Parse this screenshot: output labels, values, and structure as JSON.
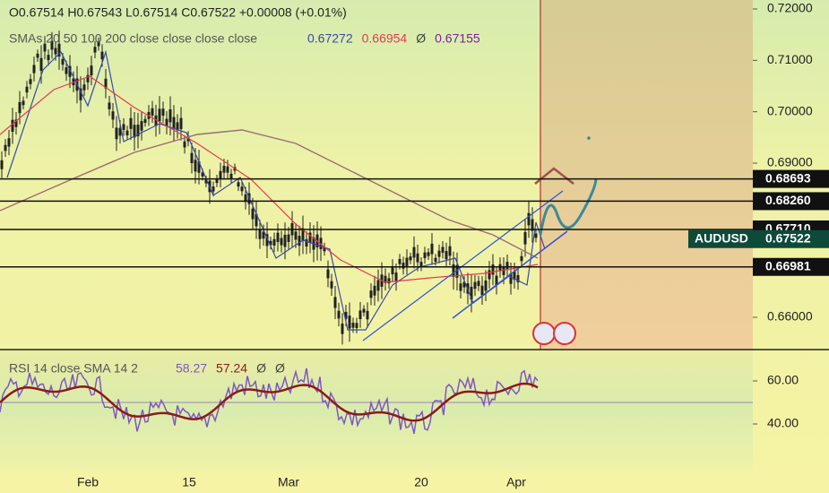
{
  "header": {
    "ohlc": "O0.67514 H0.67543 L0.67514 C0.67522 +0.00008 (+0.01%)",
    "sma_label": "SMAs 20 50 100 200 close close close close",
    "sma_values": [
      {
        "text": "0.67272",
        "color": "#3949ab"
      },
      {
        "text": "0.66954",
        "color": "#e53950"
      },
      {
        "text": "Ø",
        "color": "#444"
      },
      {
        "text": "0.67155",
        "color": "#7b1fa2"
      }
    ]
  },
  "price_axis": {
    "ticks": [
      {
        "value": 0.72,
        "label": "0.72000"
      },
      {
        "value": 0.71,
        "label": "0.71000"
      },
      {
        "value": 0.7,
        "label": "0.70000"
      },
      {
        "value": 0.69,
        "label": "0.69000"
      },
      {
        "value": 0.66,
        "label": "0.66000"
      }
    ],
    "levels": [
      {
        "value": 0.68693,
        "label": "0.68693"
      },
      {
        "value": 0.6826,
        "label": "0.68260"
      },
      {
        "value": 0.6771,
        "label": "0.67710"
      },
      {
        "value": 0.66981,
        "label": "0.66981"
      }
    ],
    "symbol": "AUDUSD",
    "last": {
      "value": 0.67522,
      "label": "0.67522"
    }
  },
  "rsi": {
    "label": "RSI 14 close SMA 14 2",
    "values": [
      {
        "text": "58.27",
        "color": "#7e57c2"
      },
      {
        "text": "57.24",
        "color": "#8b1a1a"
      },
      {
        "text": "Ø",
        "color": "#444"
      },
      {
        "text": "Ø",
        "color": "#444"
      }
    ],
    "ticks": [
      {
        "value": 60,
        "label": "60.00"
      },
      {
        "value": 40,
        "label": "40.00"
      }
    ]
  },
  "time_axis": {
    "labels": [
      "Feb",
      "15",
      "Mar",
      "20",
      "Apr"
    ]
  }
}
